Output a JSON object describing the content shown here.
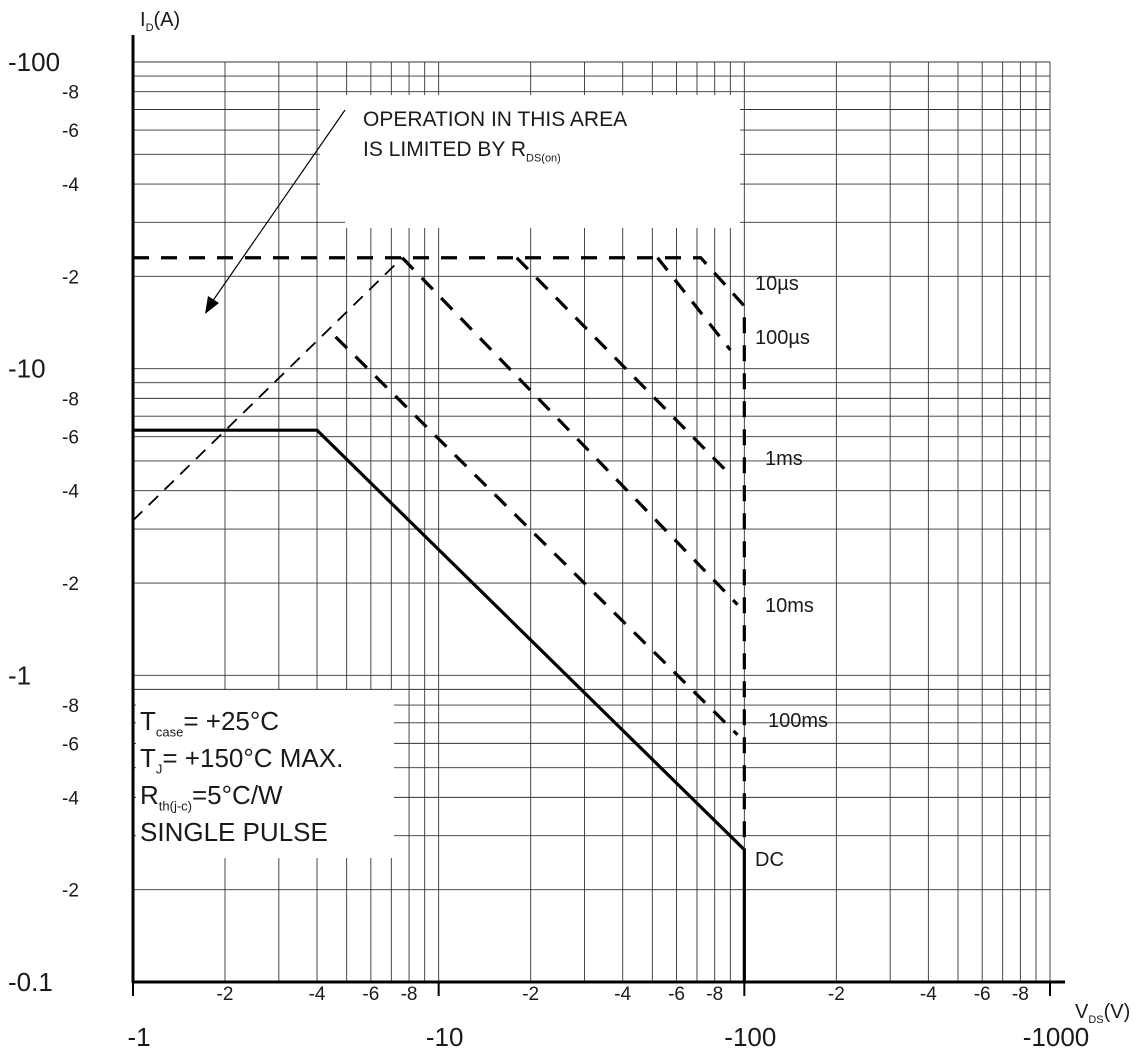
{
  "chart_data": {
    "type": "line",
    "log_x": true,
    "log_y": true,
    "grid": true,
    "y_label": {
      "text": "I",
      "sub": "D",
      "rest": "(A)"
    },
    "x_label": {
      "text": "V",
      "sub": "DS",
      "rest": "(V)"
    },
    "xlim": [
      -1,
      -1000
    ],
    "ylim": [
      -0.1,
      -100
    ],
    "xticks": [
      -1,
      -2,
      {
        "value": -3,
        "label": null
      },
      -4,
      {
        "value": -5,
        "label": null
      },
      -6,
      {
        "value": -7,
        "label": null
      },
      -8,
      {
        "value": -9,
        "label": null
      },
      -10,
      {
        "value": -20,
        "label": "-2"
      },
      {
        "value": -30,
        "label": null
      },
      {
        "value": -40,
        "label": "-4"
      },
      {
        "value": -50,
        "label": null
      },
      {
        "value": -60,
        "label": "-6"
      },
      {
        "value": -70,
        "label": null
      },
      {
        "value": -80,
        "label": "-8"
      },
      {
        "value": -90,
        "label": null
      },
      -100,
      {
        "value": -200,
        "label": "-2"
      },
      {
        "value": -300,
        "label": null
      },
      {
        "value": -400,
        "label": "-4"
      },
      {
        "value": -500,
        "label": null
      },
      {
        "value": -600,
        "label": "-6"
      },
      {
        "value": -700,
        "label": null
      },
      {
        "value": -800,
        "label": "-8"
      },
      {
        "value": -900,
        "label": null
      },
      -1000
    ],
    "yticks": [
      -0.1,
      {
        "value": -0.2,
        "label": "-2"
      },
      {
        "value": -0.3,
        "label": null
      },
      {
        "value": -0.4,
        "label": "-4"
      },
      {
        "value": -0.5,
        "label": null
      },
      {
        "value": -0.6,
        "label": "-6"
      },
      {
        "value": -0.7,
        "label": null
      },
      {
        "value": -0.8,
        "label": "-8"
      },
      {
        "value": -0.9,
        "label": null
      },
      -1,
      -2,
      {
        "value": -3,
        "label": null
      },
      -4,
      {
        "value": -5,
        "label": null
      },
      -6,
      {
        "value": -7,
        "label": null
      },
      -8,
      {
        "value": -9,
        "label": null
      },
      -10,
      {
        "value": -20,
        "label": "-2"
      },
      {
        "value": -30,
        "label": null
      },
      {
        "value": -40,
        "label": "-4"
      },
      {
        "value": -50,
        "label": null
      },
      {
        "value": -60,
        "label": "-6"
      },
      {
        "value": -70,
        "label": null
      },
      {
        "value": -80,
        "label": "-8"
      },
      {
        "value": -90,
        "label": null
      },
      -100
    ],
    "series": [
      {
        "name": "DC",
        "color": "#000000",
        "style": "solid",
        "x": [
          -1,
          -4,
          -100,
          -100
        ],
        "values": [
          -6.3,
          -6.3,
          -0.27,
          -0.1
        ]
      },
      {
        "color": "#000000",
        "style": "dashed-thin",
        "x": [
          -1,
          -7.6
        ],
        "values": [
          -3.2,
          -23
        ]
      },
      {
        "name": "10µs",
        "color": "#000000",
        "style": "dashed",
        "x": [
          -1,
          -72,
          -100,
          -100
        ],
        "values": [
          -23,
          -23,
          -16,
          -0.27
        ]
      },
      {
        "name": "100µs",
        "color": "#000000",
        "style": "dashed",
        "x": [
          -52,
          -90
        ],
        "values": [
          -23,
          -11.5
        ]
      },
      {
        "name": "1ms",
        "color": "#000000",
        "style": "dashed",
        "x": [
          -18,
          -90
        ],
        "values": [
          -23,
          -4.5
        ]
      },
      {
        "name": "10ms",
        "color": "#000000",
        "style": "dashed",
        "x": [
          -7.6,
          -95
        ],
        "values": [
          -23,
          -1.7
        ]
      },
      {
        "name": "100ms",
        "color": "#000000",
        "style": "dashed",
        "x": [
          -4.6,
          -95
        ],
        "values": [
          -12.7,
          -0.64
        ]
      }
    ],
    "region_note": [
      {
        "text": "OPERATION IN THIS AREA"
      },
      {
        "text": "IS LIMITED BY R",
        "sub": "DS(on)"
      }
    ],
    "conditions": [
      {
        "text": "T",
        "sub": "case",
        "rest": "= +25°C"
      },
      {
        "text": "T",
        "sub": "J",
        "rest": "= +150°C MAX."
      },
      {
        "text": "R",
        "sub": "th(j-c)",
        "rest": "=5°C/W"
      },
      {
        "text": "SINGLE PULSE"
      }
    ]
  }
}
